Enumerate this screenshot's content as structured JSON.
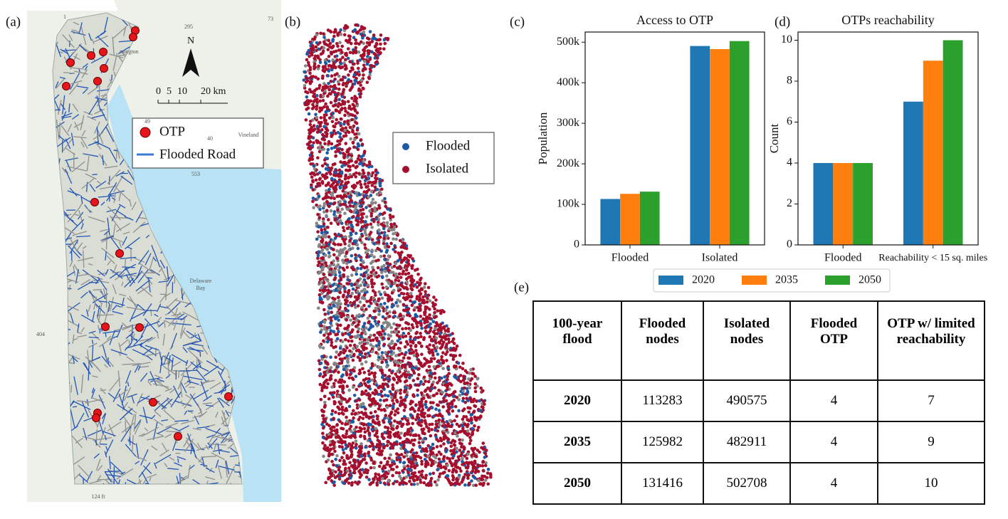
{
  "panels": [
    "(a)",
    "(b)",
    "(c)",
    "(d)",
    "(e)"
  ],
  "map_a": {
    "legend": [
      "OTP",
      "Flooded Road"
    ],
    "north": "N",
    "scale": [
      "0",
      "5",
      "10",
      "20 km"
    ],
    "places": [
      "mington",
      "Vineland",
      "Delaware",
      "Bay"
    ],
    "road_labels": [
      "1",
      "295",
      "73",
      "49",
      "40",
      "553",
      "404",
      "124 ft"
    ]
  },
  "map_b": {
    "legend": [
      "Flooded",
      "Isolated"
    ]
  },
  "chart_data": [
    {
      "type": "bar",
      "title": "Access to OTP",
      "y_label": "Population",
      "categories": [
        "Flooded",
        "Isolated"
      ],
      "series": [
        {
          "name": "2020",
          "color": "#1f77b4",
          "values": [
            113283,
            490575
          ]
        },
        {
          "name": "2035",
          "color": "#ff7f0e",
          "values": [
            125982,
            482911
          ]
        },
        {
          "name": "2050",
          "color": "#2ca02c",
          "values": [
            131416,
            502708
          ]
        }
      ],
      "ylim": [
        0,
        525000
      ],
      "yticks": [
        0,
        {
          "value": 100000,
          "label": "100k"
        },
        {
          "value": 200000,
          "label": "200k"
        },
        {
          "value": 300000,
          "label": "300k"
        },
        {
          "value": 400000,
          "label": "400k"
        },
        {
          "value": 500000,
          "label": "500k"
        }
      ],
      "grid": false,
      "legend": "bottom"
    },
    {
      "type": "bar",
      "title": "OTPs reachability",
      "y_label": "Count",
      "categories": [
        "Flooded",
        "Reachability < 15 sq. miles"
      ],
      "series": [
        {
          "name": "2020",
          "color": "#1f77b4",
          "values": [
            4,
            7
          ]
        },
        {
          "name": "2035",
          "color": "#ff7f0e",
          "values": [
            4,
            9
          ]
        },
        {
          "name": "2050",
          "color": "#2ca02c",
          "values": [
            4,
            10
          ]
        }
      ],
      "ylim": [
        0,
        10.4
      ],
      "yticks": [
        0,
        2,
        4,
        6,
        8,
        10
      ],
      "grid": false
    }
  ],
  "table": {
    "header": [
      "100-year flood",
      "Flooded nodes",
      "Isolated nodes",
      "Flooded OTP",
      "OTP w/ limited reachability"
    ],
    "rows": [
      [
        "2020",
        113283,
        490575,
        4,
        7
      ],
      [
        "2035",
        125982,
        482911,
        4,
        9
      ],
      [
        "2050",
        131416,
        502708,
        4,
        10
      ]
    ]
  }
}
